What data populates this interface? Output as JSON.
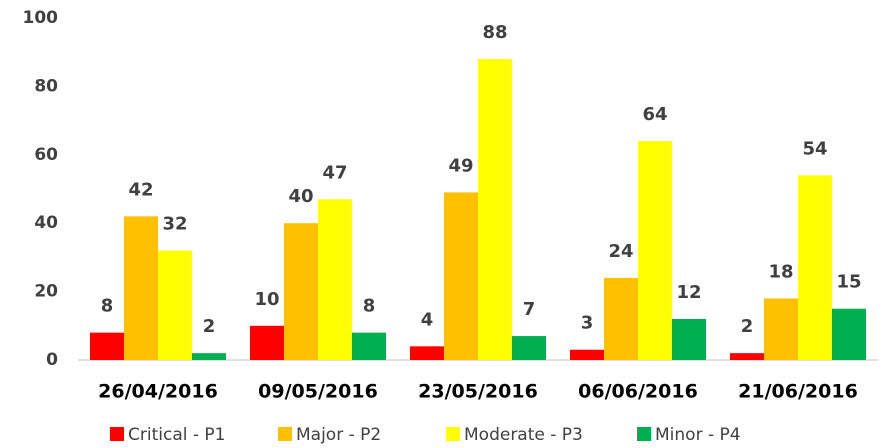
{
  "chart_data": {
    "type": "bar",
    "categories": [
      "26/04/2016",
      "09/05/2016",
      "23/05/2016",
      "06/06/2016",
      "21/06/2016"
    ],
    "series": [
      {
        "name": "Critical - P1",
        "color": "#ff0000",
        "values": [
          8,
          10,
          4,
          3,
          2
        ]
      },
      {
        "name": "Major - P2",
        "color": "#ffc000",
        "values": [
          42,
          40,
          49,
          24,
          18
        ]
      },
      {
        "name": "Moderate - P3",
        "color": "#ffff00",
        "values": [
          32,
          47,
          88,
          64,
          54
        ]
      },
      {
        "name": "Minor - P4",
        "color": "#00b050",
        "values": [
          2,
          8,
          7,
          12,
          15
        ]
      }
    ],
    "ylim": [
      0,
      100
    ],
    "yticks": [
      0,
      20,
      40,
      60,
      80,
      100
    ],
    "grid": false,
    "legend": "bottom"
  }
}
